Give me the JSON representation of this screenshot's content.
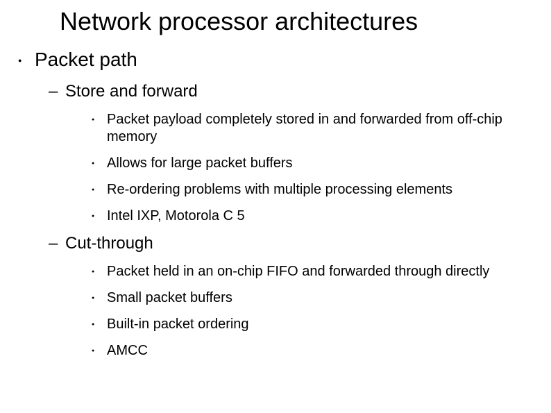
{
  "title": "Network processor architectures",
  "colors": {
    "background": "#ffffff",
    "text": "#000000"
  },
  "typography": {
    "title_fontsize": 36,
    "lvl1_fontsize": 28,
    "lvl2_fontsize": 24,
    "lvl3_fontsize": 20,
    "font_family": "Arial"
  },
  "bullets": {
    "lvl1_marker": "●",
    "lvl2_marker": "–",
    "lvl3_marker": "●"
  },
  "content": {
    "main": {
      "label": "Packet path",
      "sections": {
        "store": {
          "label": "Store and forward",
          "items": [
            "Packet payload completely stored in and forwarded from off-chip memory",
            "Allows for large packet buffers",
            "Re-ordering problems with multiple processing elements",
            "Intel IXP, Motorola C 5"
          ]
        },
        "cut": {
          "label": "Cut-through",
          "items": [
            "Packet held in an on-chip FIFO and forwarded through directly",
            "Small packet buffers",
            "Built-in packet ordering",
            "AMCC"
          ]
        }
      }
    }
  }
}
